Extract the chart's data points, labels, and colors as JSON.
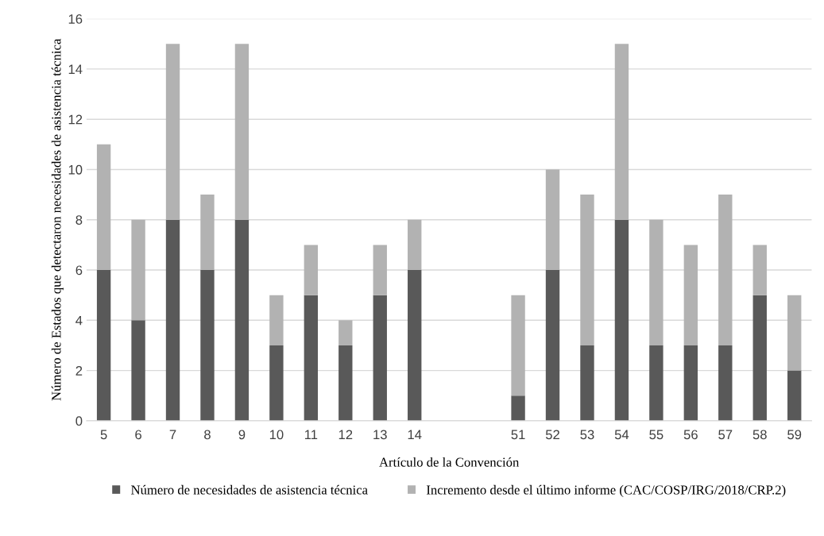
{
  "chart_data": {
    "type": "bar",
    "stacked": true,
    "xlabel": "Artículo de la Convención",
    "ylabel": "Número de Estados que detectaron necesidades de asistencia técnica",
    "categories": [
      "5",
      "6",
      "7",
      "8",
      "9",
      "10",
      "11",
      "12",
      "13",
      "14",
      null,
      null,
      "51",
      "52",
      "53",
      "54",
      "55",
      "56",
      "57",
      "58",
      "59"
    ],
    "series": [
      {
        "name": "Número de necesidades de asistencia técnica",
        "color": "#595959",
        "values": [
          6,
          4,
          8,
          6,
          8,
          3,
          5,
          3,
          5,
          6,
          null,
          null,
          1,
          6,
          3,
          8,
          3,
          3,
          3,
          5,
          2
        ]
      },
      {
        "name": "Incremento desde el último informe (CAC/COSP/IRG/2018/CRP.2)",
        "color": "#b2b2b2",
        "values": [
          5,
          4,
          7,
          3,
          7,
          2,
          2,
          1,
          2,
          2,
          null,
          null,
          4,
          4,
          6,
          7,
          5,
          4,
          6,
          2,
          3
        ]
      }
    ],
    "ylim": [
      0,
      16
    ],
    "yticks": [
      0,
      2,
      4,
      6,
      8,
      10,
      12,
      14,
      16
    ],
    "grid": "y",
    "legend": "bottom"
  }
}
